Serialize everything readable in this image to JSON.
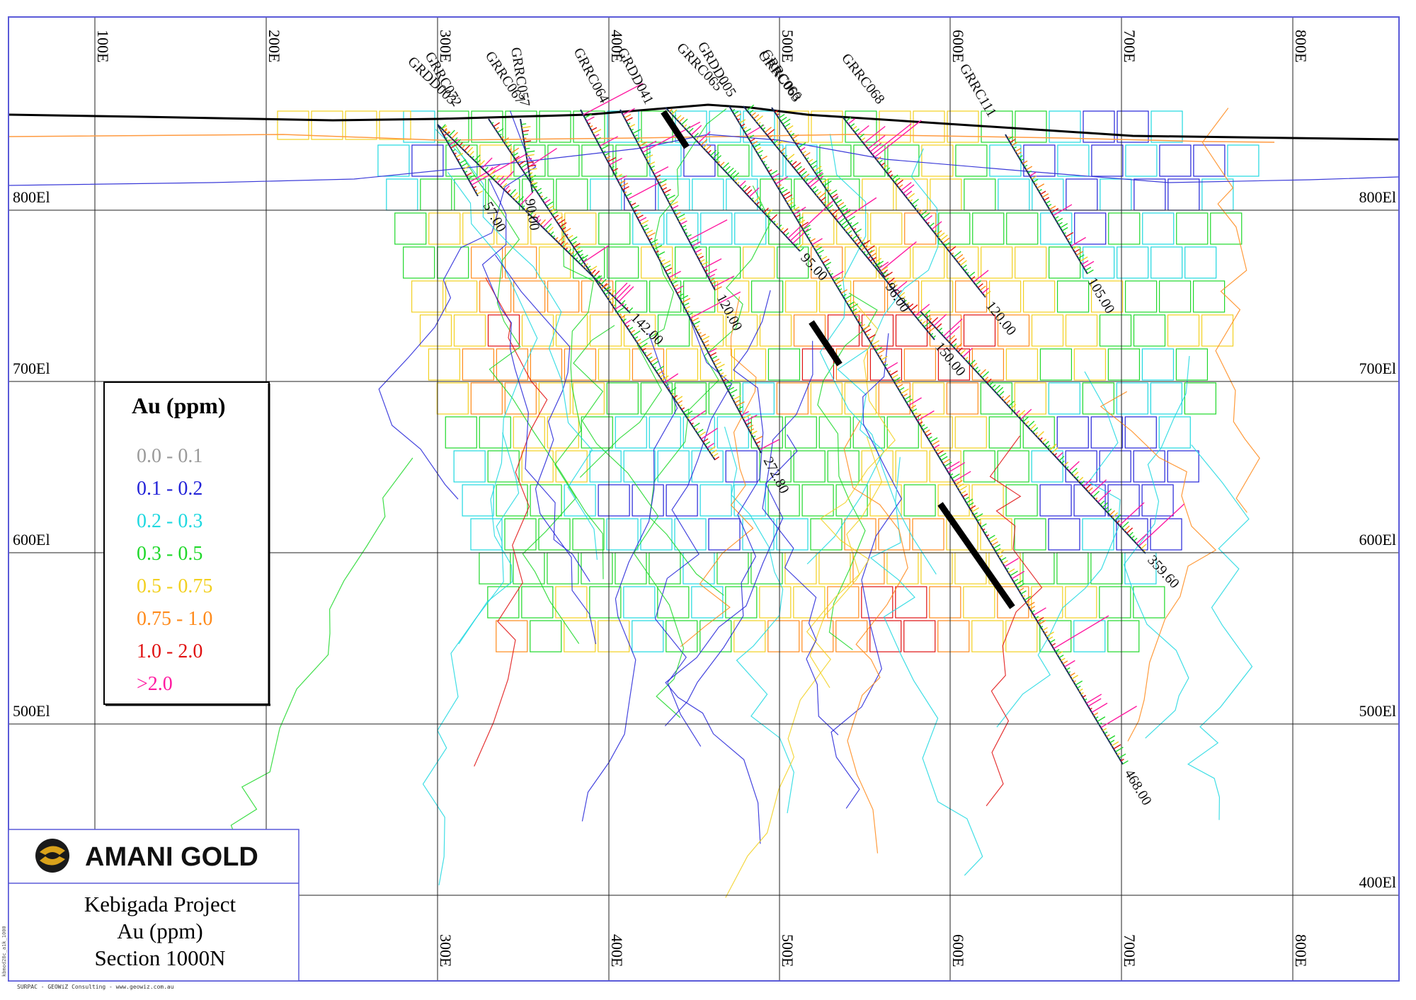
{
  "axes": {
    "easting_top": [
      "100E",
      "200E",
      "300E",
      "400E",
      "500E",
      "600E",
      "700E",
      "800E"
    ],
    "easting_bottom": [
      "300E",
      "400E",
      "500E",
      "600E",
      "700E",
      "800E"
    ],
    "elevation_left": [
      "800El",
      "700El",
      "600El",
      "500El"
    ],
    "elevation_right": [
      "800El",
      "700El",
      "600El",
      "500El",
      "400El"
    ]
  },
  "drillholes": [
    {
      "id": "GRRC072",
      "depth_label": "57.00"
    },
    {
      "id": "GRDD003",
      "depth_label": "142.00"
    },
    {
      "id": "GRRC067",
      "depth_label": ""
    },
    {
      "id": "GRRC057",
      "depth_label": "90.00"
    },
    {
      "id": "GRRC064",
      "depth_label": "272.80"
    },
    {
      "id": "GRDD041",
      "depth_label": "120.00"
    },
    {
      "id": "GRRC065",
      "depth_label": "95.00"
    },
    {
      "id": "GRDD005",
      "depth_label": "468.00"
    },
    {
      "id": "GRRC066",
      "depth_label": "150.00"
    },
    {
      "id": "GRRC063",
      "depth_label": "96.00"
    },
    {
      "id": "GRRC068",
      "depth_label": "120.00"
    },
    {
      "id": "GRRC111",
      "depth_label": "105.00"
    },
    {
      "id": "",
      "depth_label": "359.60"
    }
  ],
  "legend": {
    "title": "Au (ppm)",
    "items": [
      {
        "label": "0.0 - 0.1",
        "color": "#9a9a9a"
      },
      {
        "label": "0.1 - 0.2",
        "color": "#2323d8"
      },
      {
        "label": "0.2 - 0.3",
        "color": "#1fd8e0"
      },
      {
        "label": "0.3 - 0.5",
        "color": "#1fd82a"
      },
      {
        "label": "0.5 - 0.75",
        "color": "#f2d020"
      },
      {
        "label": "0.75 - 1.0",
        "color": "#ff8a1a"
      },
      {
        "label": "1.0 - 2.0",
        "color": "#e01010"
      },
      {
        "label": ">2.0",
        "color": "#ff1aa0"
      }
    ]
  },
  "title_block": {
    "company": "AMANI GOLD",
    "project": "Kebigada Project",
    "variable": "Au (ppm)",
    "section": "Section 1000N"
  },
  "credits": {
    "footer": "SURPAC - GEOWiZ Consulting - www.geowiz.com.au",
    "side": "kbmod28c_a1k_1000"
  },
  "colors": {
    "topography": "#000000",
    "weathering_orange": "#ff9a40",
    "weathering_blue": "#3a3ad8",
    "grid": "#000000",
    "frame": "#5a5ad8"
  }
}
